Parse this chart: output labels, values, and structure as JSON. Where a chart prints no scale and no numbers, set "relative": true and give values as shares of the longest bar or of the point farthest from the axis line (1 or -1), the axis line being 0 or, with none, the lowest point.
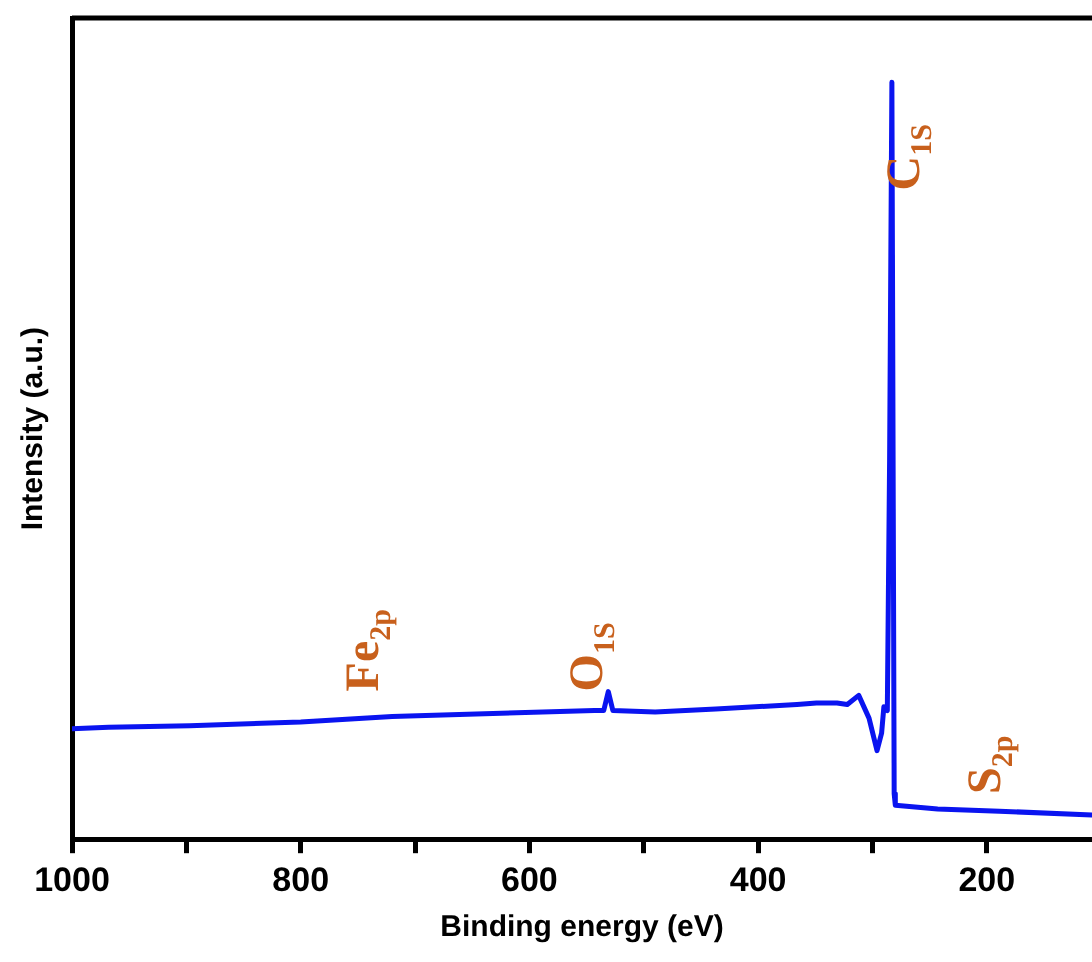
{
  "chart_data": {
    "type": "line",
    "relative": true,
    "xlabel": "Binding energy (eV)",
    "ylabel": "Intensity (a.u.)",
    "xlim": [
      1000,
      108
    ],
    "xticks": [
      1000,
      {
        "value": 900,
        "label": null
      },
      800,
      {
        "value": 700,
        "label": null
      },
      600,
      {
        "value": 500,
        "label": null
      },
      400,
      {
        "value": 300,
        "label": null
      },
      200
    ],
    "grid": false,
    "legend": false,
    "marker": "none",
    "line_style": "solid",
    "series": [
      {
        "color": "#0a14f0",
        "x": [
          1000,
          968,
          897,
          800,
          720,
          632,
          543,
          535,
          531,
          527,
          490,
          437,
          366,
          349,
          331,
          322,
          312,
          303,
          296,
          292,
          290,
          287,
          285,
          283,
          281,
          280,
          243,
          189,
          108
        ],
        "values": [
          0.146,
          0.148,
          0.15,
          0.155,
          0.162,
          0.166,
          0.17,
          0.17,
          0.195,
          0.17,
          0.168,
          0.172,
          0.178,
          0.18,
          0.18,
          0.178,
          0.19,
          0.16,
          0.117,
          0.14,
          0.175,
          0.17,
          0.5,
          1.0,
          0.06,
          0.045,
          0.04,
          0.037,
          0.032
        ]
      }
    ],
    "annotations": [
      "Fe$_{2p}$",
      "O$_{1S}$",
      "C$_{1S}$",
      "S$_{2p}$"
    ]
  }
}
